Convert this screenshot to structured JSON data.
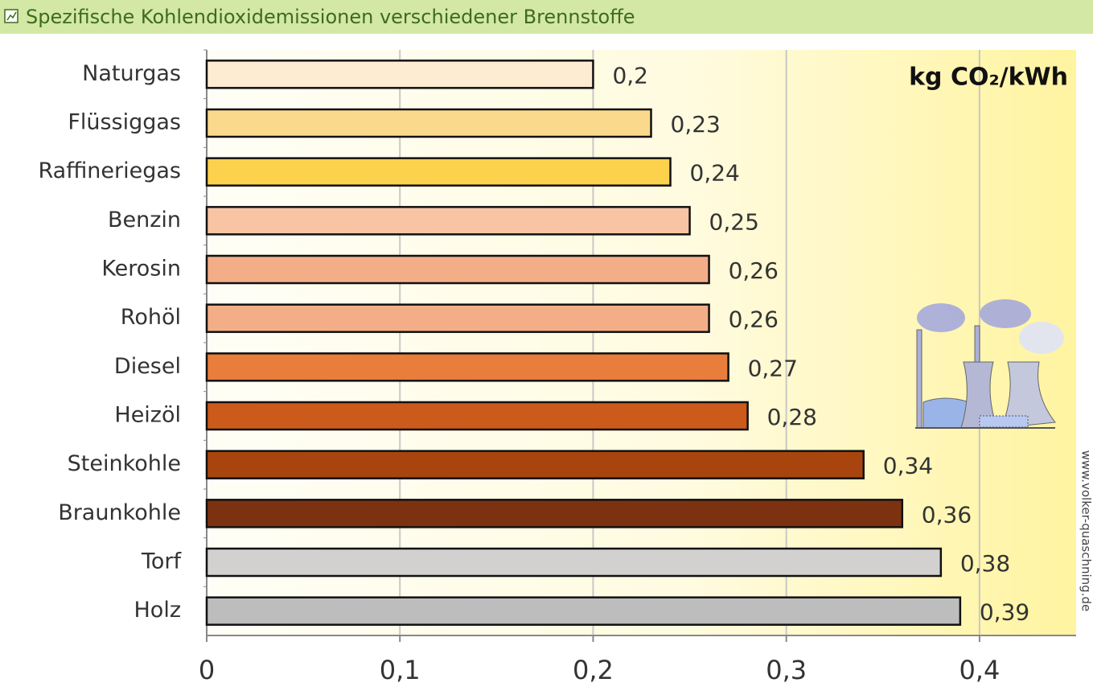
{
  "chart_data": {
    "type": "bar",
    "orientation": "horizontal",
    "title": "Spezifische Kohlendioxidemissionen verschiedener Brennstoffe",
    "unit_label": "kg CO₂/kWh",
    "watermark": "www.volker-quaschning.de",
    "categories": [
      "Naturgas",
      "Flüssiggas",
      "Raffineriegas",
      "Benzin",
      "Kerosin",
      "Rohöl",
      "Diesel",
      "Heizöl",
      "Steinkohle",
      "Braunkohle",
      "Torf",
      "Holz"
    ],
    "values": [
      0.2,
      0.23,
      0.24,
      0.25,
      0.26,
      0.26,
      0.27,
      0.28,
      0.34,
      0.36,
      0.38,
      0.39
    ],
    "value_labels": [
      "0,2",
      "0,23",
      "0,24",
      "0,25",
      "0,26",
      "0,26",
      "0,27",
      "0,28",
      "0,34",
      "0,36",
      "0,38",
      "0,39"
    ],
    "colors": [
      "#fdebd2",
      "#fbd98c",
      "#fcd14c",
      "#f8c4a4",
      "#f3ae88",
      "#f3ae88",
      "#e97d3c",
      "#cc5a1b",
      "#a8450e",
      "#7c3211",
      "#d3d0d0",
      "#bdbdbd"
    ],
    "xlim": [
      0,
      0.45
    ],
    "xticks": [
      0,
      {
        "value": 0.1,
        "label": "0,1"
      },
      {
        "value": 0.2,
        "label": "0,2"
      },
      {
        "value": 0.3,
        "label": "0,3"
      },
      {
        "value": 0.4,
        "label": "0,4"
      }
    ],
    "grid": true
  }
}
